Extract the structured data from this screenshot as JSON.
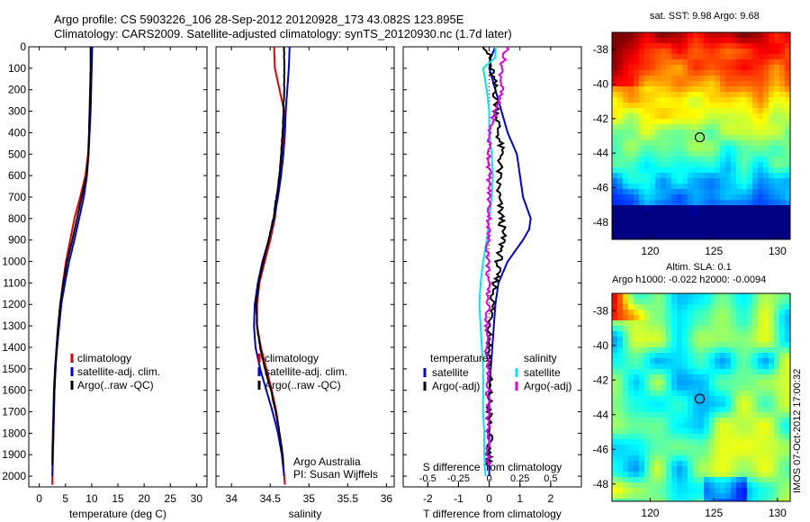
{
  "header": {
    "line1": "Argo profile: CS 5903226_106 28-Sep-2012 20120928_173 43.082S 123.895E",
    "line2": "Climatology: CARS2009. Satellite-adjusted climatology: synTS_20120930.nc (1.7d later)"
  },
  "colors": {
    "climatology": "#e00000",
    "satellite": "#0000dd",
    "argo": "#000000",
    "salinity_satellite": "#00e8ee",
    "salinity_argo": "#e000e0"
  },
  "watermark": "IMOS 07-Oct-2012 17:00:32",
  "chart_data": [
    {
      "type": "line",
      "name": "temperature",
      "xlabel": "temperature (deg C)",
      "ylabel": "",
      "xlim": [
        -2,
        32
      ],
      "ylim": [
        2050,
        0
      ],
      "xticks": [
        0,
        5,
        10,
        15,
        20,
        25,
        30
      ],
      "yticks": [
        0,
        100,
        200,
        300,
        400,
        500,
        600,
        700,
        800,
        900,
        1000,
        1100,
        1200,
        1300,
        1400,
        1500,
        1600,
        1700,
        1800,
        1900,
        2000
      ],
      "legend": [
        "climatology",
        "satellite-adj. clim.",
        "Argo(..raw -QC)"
      ],
      "legend_position": "lower-right",
      "series": [
        {
          "name": "climatology",
          "depth": [
            0,
            100,
            200,
            300,
            400,
            500,
            600,
            700,
            800,
            900,
            1000,
            1100,
            1200,
            1300,
            1400,
            1500,
            1600,
            1700,
            1800,
            1900,
            2000,
            2040
          ],
          "values": [
            9.9,
            9.9,
            9.8,
            9.6,
            9.5,
            9.3,
            8.8,
            7.8,
            6.7,
            5.9,
            5.1,
            4.5,
            4.0,
            3.6,
            3.3,
            3.1,
            2.9,
            2.8,
            2.7,
            2.6,
            2.5,
            2.5
          ]
        },
        {
          "name": "satellite-adj. clim.",
          "depth": [
            0,
            100,
            200,
            300,
            400,
            500,
            600,
            700,
            800,
            900,
            1000,
            1100,
            1200,
            1300,
            1400,
            1500,
            1600,
            1700,
            1800,
            1900,
            2000
          ],
          "values": [
            10.1,
            10.0,
            9.9,
            9.8,
            9.6,
            9.4,
            9.1,
            8.5,
            7.6,
            6.7,
            5.7,
            4.9,
            4.2,
            3.8,
            3.4,
            3.1,
            2.9,
            2.8,
            2.7,
            2.6,
            2.5
          ]
        },
        {
          "name": "Argo(..raw -QC)",
          "depth": [
            0,
            100,
            200,
            300,
            400,
            500,
            600,
            700,
            800,
            900,
            1000,
            1100,
            1200,
            1300,
            1400,
            1500,
            1600,
            1700,
            1800,
            1900,
            1950
          ],
          "values": [
            9.8,
            9.8,
            9.7,
            9.6,
            9.5,
            9.4,
            9.0,
            8.1,
            7.2,
            6.3,
            5.3,
            4.6,
            4.0,
            3.6,
            3.3,
            3.0,
            2.8,
            2.7,
            2.6,
            2.5,
            2.5
          ]
        }
      ]
    },
    {
      "type": "line",
      "name": "salinity",
      "xlabel": "salinity",
      "xlim": [
        33.8,
        36.1
      ],
      "ylim": [
        2050,
        0
      ],
      "xticks": [
        34,
        34.5,
        35,
        35.5,
        36
      ],
      "legend": [
        "climatology",
        "satellite-adj. clim.",
        "Argo(..raw -QC)"
      ],
      "legend_position": "lower-right",
      "annotation": [
        "Argo Australia",
        "PI: Susan Wijffels"
      ],
      "series": [
        {
          "name": "climatology",
          "depth": [
            0,
            100,
            200,
            300,
            400,
            500,
            600,
            700,
            800,
            900,
            1000,
            1100,
            1200,
            1300,
            1400,
            1500,
            1600,
            1700,
            1800,
            1900,
            2000,
            2040
          ],
          "values": [
            34.55,
            34.56,
            34.62,
            34.68,
            34.67,
            34.65,
            34.62,
            34.59,
            34.56,
            34.5,
            34.43,
            34.36,
            34.33,
            34.33,
            34.38,
            34.45,
            34.52,
            34.58,
            34.62,
            34.66,
            34.68,
            34.69
          ]
        },
        {
          "name": "satellite-adj. clim.",
          "depth": [
            0,
            100,
            200,
            300,
            400,
            500,
            600,
            700,
            800,
            900,
            1000,
            1100,
            1200,
            1300,
            1400,
            1500,
            1600,
            1700,
            1800,
            1900,
            2000
          ],
          "values": [
            34.75,
            34.74,
            34.72,
            34.7,
            34.69,
            34.67,
            34.64,
            34.6,
            34.55,
            34.48,
            34.4,
            34.34,
            34.3,
            34.29,
            34.31,
            34.37,
            34.45,
            34.53,
            34.6,
            34.65,
            34.68
          ]
        },
        {
          "name": "Argo(..raw -QC)",
          "depth": [
            0,
            100,
            200,
            300,
            400,
            500,
            600,
            700,
            800,
            900,
            1000,
            1100,
            1200,
            1300,
            1400,
            1500,
            1600,
            1700,
            1800,
            1900,
            1950
          ],
          "values": [
            34.68,
            34.68,
            34.68,
            34.67,
            34.66,
            34.64,
            34.62,
            34.58,
            34.54,
            34.48,
            34.41,
            34.35,
            34.32,
            34.33,
            34.37,
            34.43,
            34.51,
            34.57,
            34.62,
            34.66,
            34.67
          ]
        }
      ]
    },
    {
      "type": "line",
      "name": "difference from climatology",
      "xlabel": "T difference from climatology",
      "xlabel2": "S difference from climatology",
      "xlim": [
        -2.8,
        3.0
      ],
      "ylim": [
        2050,
        0
      ],
      "xticks": [
        -2,
        -1,
        0,
        1,
        2
      ],
      "xticks2": [
        -0.5,
        -0.25,
        0,
        0.25,
        0.5
      ],
      "legend_left_title": "temperature",
      "legend_right_title": "salinity",
      "legend_left": [
        "satellite",
        "Argo(-adj)"
      ],
      "legend_right": [
        "satellite",
        "Argo(-adj)"
      ],
      "series": [
        {
          "name": "temperature satellite",
          "depth": [
            0,
            50,
            100,
            150,
            200,
            300,
            400,
            500,
            600,
            700,
            800,
            850,
            900,
            1000,
            1100,
            1200,
            1300,
            1400,
            1500,
            1600,
            1700,
            1800,
            1900,
            2000
          ],
          "values": [
            0.2,
            0.05,
            0.0,
            0.1,
            0.2,
            0.4,
            0.6,
            0.9,
            1.0,
            1.1,
            1.35,
            1.3,
            1.1,
            0.6,
            0.3,
            0.2,
            0.15,
            0.1,
            0.05,
            0.0,
            0.0,
            0.0,
            0.0,
            0.0
          ]
        },
        {
          "name": "temperature Argo(-adj)",
          "depth": [
            0,
            50,
            100,
            200,
            300,
            400,
            500,
            600,
            700,
            800,
            900,
            1000,
            1100,
            1200,
            1300,
            1400,
            1500,
            1600,
            1700,
            1800,
            1900,
            1950
          ],
          "values": [
            -0.1,
            0.0,
            0.05,
            0.2,
            0.25,
            0.3,
            0.4,
            0.3,
            0.3,
            0.4,
            0.45,
            0.3,
            0.2,
            0.1,
            0.05,
            0.0,
            0.0,
            0.0,
            0.0,
            0.0,
            0.0,
            0.0
          ]
        },
        {
          "name": "salinity satellite",
          "depth": [
            0,
            50,
            100,
            200,
            300,
            400,
            500,
            600,
            700,
            800,
            900,
            1000,
            1100,
            1200,
            1300,
            1400,
            1500,
            1600,
            1700,
            1800,
            1900,
            2000
          ],
          "values": [
            0.05,
            0.05,
            -0.05,
            -0.02,
            0.0,
            0.0,
            0.02,
            0.03,
            0.02,
            0.0,
            -0.02,
            -0.05,
            -0.07,
            -0.08,
            -0.07,
            -0.06,
            -0.05,
            -0.05,
            -0.05,
            -0.04,
            -0.04,
            -0.03
          ]
        },
        {
          "name": "salinity Argo(-adj)",
          "depth": [
            0,
            50,
            100,
            200,
            300,
            400,
            500,
            600,
            700,
            800,
            900,
            1000,
            1100,
            1200,
            1300,
            1400,
            1500,
            1600,
            1700,
            1800,
            1900,
            1950
          ],
          "values": [
            0.15,
            0.12,
            0.1,
            0.1,
            0.05,
            0.0,
            0.0,
            0.0,
            0.0,
            0.0,
            -0.01,
            -0.01,
            -0.01,
            -0.01,
            -0.02,
            -0.02,
            -0.01,
            -0.01,
            -0.01,
            -0.01,
            -0.01,
            -0.01
          ]
        }
      ]
    },
    {
      "type": "heatmap",
      "name": "sat SST map",
      "title": "sat. SST: 9.98  Argo: 9.68",
      "xlim": [
        117,
        131
      ],
      "ylim": [
        -49,
        -37
      ],
      "xticks": [
        120,
        125,
        130
      ],
      "yticks": [
        -38,
        -40,
        -42,
        -44,
        -46,
        -48
      ],
      "marker": {
        "lon": 123.895,
        "lat": -43.082
      }
    },
    {
      "type": "heatmap",
      "name": "altimetry SLA map",
      "title": "Altim. SLA: 0.1",
      "subtitle": "Argo h1000: -0.022 h2000: -0.0094",
      "xlim": [
        117,
        131
      ],
      "ylim": [
        -49,
        -37
      ],
      "xticks": [
        120,
        125,
        130
      ],
      "yticks": [
        -38,
        -40,
        -42,
        -44,
        -46,
        -48
      ],
      "marker": {
        "lon": 123.895,
        "lat": -43.082
      }
    }
  ]
}
